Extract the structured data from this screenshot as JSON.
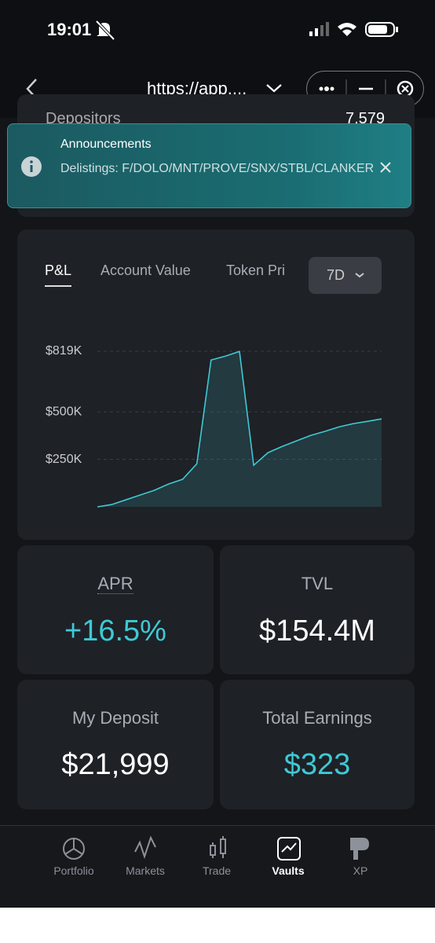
{
  "status_bar": {
    "time": "19:01"
  },
  "browser": {
    "url": "https://app...."
  },
  "stats_row": {
    "label": "Depositors",
    "value": "7,579"
  },
  "announcement": {
    "title": "Announcements",
    "message": "Delistings: F/DOLO/MNT/PROVE/SNX/STBL/CLANKER"
  },
  "tabs": [
    "P&L",
    "Account Value",
    "Token Pri"
  ],
  "range": "7D",
  "chart": {
    "type": "line",
    "color": "#3fc9d4",
    "values": [
      0,
      12000,
      37000,
      62000,
      87000,
      120000,
      145000,
      227000,
      773000,
      793000,
      818000,
      219000,
      285000,
      318000,
      347000,
      376000,
      397000,
      421000,
      438000,
      450000,
      463000
    ],
    "ylim": [
      0,
      819000
    ],
    "yticks": [
      {
        "value": 250000,
        "label": "$250K"
      },
      {
        "value": 500000,
        "label": "$500K"
      },
      {
        "value": 819000,
        "label": "$819K"
      }
    ],
    "grid": true
  },
  "cards": [
    {
      "label": "APR",
      "value": "+16.5%"
    },
    {
      "label": "TVL",
      "value": "$154.4M"
    },
    {
      "label": "My Deposit",
      "value": "$21,999"
    },
    {
      "label": "Total Earnings",
      "value": "$323"
    }
  ],
  "nav": [
    "Portfolio",
    "Markets",
    "Trade",
    "Vaults",
    "XP"
  ]
}
